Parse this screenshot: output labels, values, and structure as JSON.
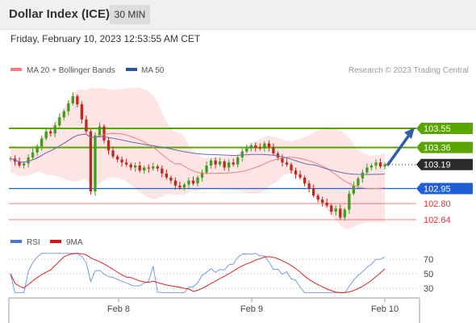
{
  "header": {
    "title": "Dollar Index (ICE)",
    "timeframe": "30 MIN",
    "datetime": "Friday, February 10, 2023 12:53:55 AM CET"
  },
  "legend": {
    "ma20_label": "MA 20 + Bollinger Bands",
    "ma20_color": "#f08080",
    "ma50_label": "MA 50",
    "ma50_color": "#2f5597",
    "credit": "Research © 2023 Trading Central"
  },
  "rsi_legend": {
    "rsi_label": "RSI",
    "rsi_color": "#4a78d6",
    "ma_label": "9MA",
    "ma_color": "#e01010"
  },
  "chart_data": [
    {
      "type": "candlestick",
      "symbol": "Dollar Index (ICE)",
      "interval": "30 MIN",
      "x_ticks": [
        "Feb 8",
        "Feb 9",
        "Feb 10"
      ],
      "closes": [
        103.25,
        103.22,
        103.18,
        103.2,
        103.26,
        103.31,
        103.37,
        103.45,
        103.52,
        103.5,
        103.58,
        103.66,
        103.72,
        103.8,
        103.87,
        103.79,
        103.64,
        103.52,
        102.92,
        103.48,
        103.57,
        103.43,
        103.33,
        103.27,
        103.24,
        103.21,
        103.19,
        103.16,
        103.18,
        103.13,
        103.16,
        103.15,
        103.17,
        103.15,
        103.1,
        103.06,
        103.03,
        102.98,
        102.96,
        102.99,
        103.03,
        103.0,
        103.06,
        103.11,
        103.18,
        103.23,
        103.19,
        103.22,
        103.16,
        103.21,
        103.19,
        103.26,
        103.32,
        103.35,
        103.38,
        103.36,
        103.35,
        103.4,
        103.36,
        103.3,
        103.26,
        103.21,
        103.19,
        103.13,
        103.09,
        103.06,
        103.0,
        102.95,
        102.88,
        102.84,
        102.81,
        102.78,
        102.72,
        102.75,
        102.66,
        102.74,
        102.9,
        102.98,
        103.05,
        103.11,
        103.16,
        103.18,
        103.21,
        103.17,
        103.19
      ],
      "price_levels": [
        {
          "value": 103.55,
          "style": "resistance",
          "color": "#5aa500"
        },
        {
          "value": 103.36,
          "style": "resistance",
          "color": "#5aa500"
        },
        {
          "value": 103.19,
          "style": "current",
          "color": "#222222"
        },
        {
          "value": 102.95,
          "style": "support",
          "color": "#1f5fd6"
        },
        {
          "value": 102.8,
          "style": "support",
          "color": "#e03030"
        },
        {
          "value": 102.64,
          "style": "support",
          "color": "#e03030"
        }
      ],
      "price_axis_labels": [
        "103.55",
        "103.36",
        "103.19",
        "102.95",
        "102.80",
        "102.64"
      ],
      "projection": {
        "from": 103.19,
        "to": 103.55,
        "direction": "up"
      }
    },
    {
      "type": "line",
      "indicator": "RSI",
      "ylim": [
        20,
        80
      ],
      "y_ticks": [
        "70",
        "50",
        "30"
      ]
    }
  ]
}
